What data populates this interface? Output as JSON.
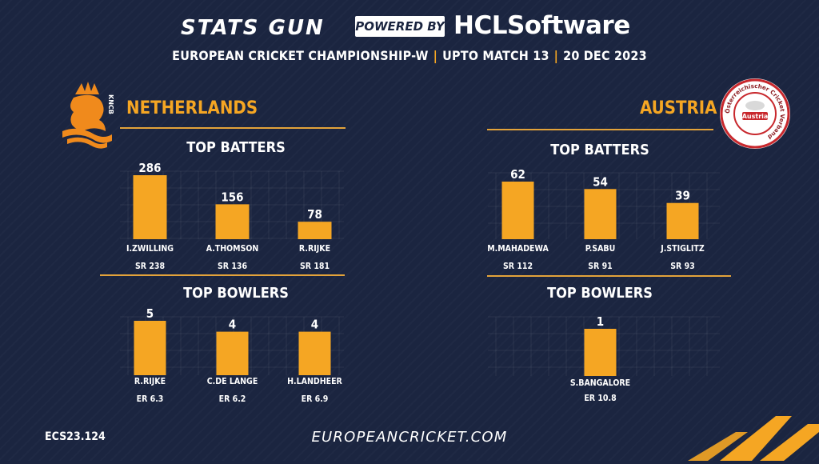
{
  "header": {
    "brand": "STATS GUN",
    "powered_by": "POWERED BY",
    "sponsor": "HCLSoftware",
    "event": "EUROPEAN CRICKET CHAMPIONSHIP-W",
    "scope": "UPTO MATCH 13",
    "date": "20 DEC 2023"
  },
  "teams": [
    {
      "name": "NETHERLANDS",
      "logo_text": "KNCB",
      "batters_title": "TOP BATTERS",
      "bowlers_title": "TOP BOWLERS"
    },
    {
      "name": "AUSTRIA",
      "logo_text": "Austria",
      "logo_ring_text": "Österreichischer Cricket Verband",
      "batters_title": "TOP BATTERS",
      "bowlers_title": "TOP BOWLERS"
    }
  ],
  "chart_data": [
    {
      "type": "bar",
      "team": "NETHERLANDS",
      "section": "TOP BATTERS",
      "categories": [
        "I.ZWILLING",
        "A.THOMSON",
        "R.RIJKE"
      ],
      "values": [
        286,
        156,
        78
      ],
      "sublabels": [
        "SR 238",
        "SR 136",
        "SR 181"
      ],
      "color": "#f5a623"
    },
    {
      "type": "bar",
      "team": "NETHERLANDS",
      "section": "TOP BOWLERS",
      "categories": [
        "R.RIJKE",
        "C.DE LANGE",
        "H.LANDHEER"
      ],
      "values": [
        5,
        4,
        4
      ],
      "sublabels": [
        "ER 6.3",
        "ER 6.2",
        "ER 6.9"
      ],
      "color": "#f5a623"
    },
    {
      "type": "bar",
      "team": "AUSTRIA",
      "section": "TOP BATTERS",
      "categories": [
        "M.MAHADEWA",
        "P.SABU",
        "J.STIGLITZ"
      ],
      "values": [
        62,
        54,
        39
      ],
      "sublabels": [
        "SR 112",
        "SR 91",
        "SR 93"
      ],
      "color": "#f5a623"
    },
    {
      "type": "bar",
      "team": "AUSTRIA",
      "section": "TOP BOWLERS",
      "categories": [
        "S.BANGALORE"
      ],
      "values": [
        1
      ],
      "sublabels": [
        "ER 10.8"
      ],
      "color": "#f5a623"
    }
  ],
  "footer": {
    "code": "ECS23.124",
    "url": "EUROPEANCRICKET.COM"
  },
  "colors": {
    "background": "#1b2540",
    "accent": "#f5a623"
  }
}
